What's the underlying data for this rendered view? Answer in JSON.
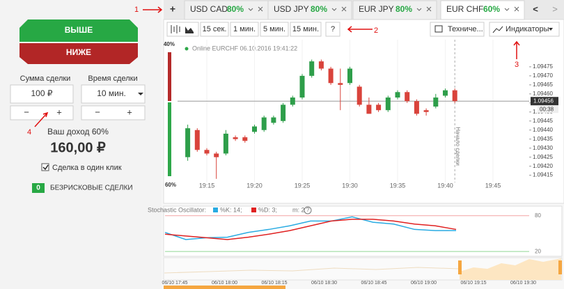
{
  "left_panel": {
    "up_button": "ВЫШЕ",
    "down_button": "НИЖЕ",
    "amount_label": "Сумма сделки",
    "time_label": "Время сделки",
    "amount": "100 ₽",
    "time": "10 мин.",
    "minus": "−",
    "plus": "+",
    "income_label": "Ваш доход 60%",
    "income": "160,00 ₽",
    "one_click": "Сделка в один клик",
    "risk_free_count": "0",
    "risk_free_label": "БЕЗРИСКОВЫЕ СДЕЛКИ"
  },
  "tabs": {
    "new_tab": "+",
    "items": [
      {
        "name": "USD CAD",
        "payout": "80%"
      },
      {
        "name": "USD JPY",
        "payout": "80%"
      },
      {
        "name": "EUR JPY",
        "payout": "80%"
      },
      {
        "name": "EUR CHF",
        "payout": "60%"
      }
    ],
    "prev": "<",
    "next": ">"
  },
  "toolbar": {
    "intervals": [
      "15 сек.",
      "1 мин.",
      "5 мин.",
      "15 мин."
    ],
    "help": "?",
    "technical": "Техниче...",
    "indicators": "Индикаторы"
  },
  "annotations": [
    "1",
    "2",
    "3",
    "4"
  ],
  "sentiment": {
    "values": [
      40,
      60
    ],
    "value_labels": [
      "40%",
      "60%"
    ],
    "colors": [
      "#b52a2a",
      "#2ea84a"
    ]
  },
  "chart_data": [
    {
      "type": "candlestick",
      "title": "Online EURCHF 06.10.2016 19:41:22",
      "x": [
        "19:13",
        "19:14",
        "19:15",
        "19:16",
        "19:17",
        "19:18",
        "19:19",
        "19:20",
        "19:21",
        "19:22",
        "19:23",
        "19:24",
        "19:25",
        "19:26",
        "19:27",
        "19:28",
        "19:29",
        "19:30",
        "19:31",
        "19:32",
        "19:33",
        "19:34",
        "19:35",
        "19:36",
        "19:37",
        "19:38",
        "19:39",
        "19:40",
        "19:41"
      ],
      "open": [
        1.09425,
        1.0944,
        1.09429,
        1.09427,
        1.09427,
        1.09436,
        1.09436,
        1.09439,
        1.0944,
        1.09444,
        1.09445,
        1.09454,
        1.09458,
        1.0947,
        1.09478,
        1.09474,
        1.09466,
        1.09466,
        1.09464,
        1.09454,
        1.09454,
        1.09451,
        1.09458,
        1.09461,
        1.09456,
        1.09451,
        1.09453,
        1.09459,
        1.09462
      ],
      "high": [
        1.09443,
        1.09441,
        1.0943,
        1.09428,
        1.0944,
        1.09437,
        1.09437,
        1.09443,
        1.09448,
        1.09448,
        1.09455,
        1.09459,
        1.09471,
        1.09479,
        1.09479,
        1.09475,
        1.09474,
        1.09475,
        1.09465,
        1.09458,
        1.09455,
        1.09459,
        1.09462,
        1.09462,
        1.09457,
        1.09452,
        1.0946,
        1.09463,
        1.09463
      ],
      "low": [
        1.09423,
        1.09428,
        1.09426,
        1.09413,
        1.09426,
        1.09434,
        1.09433,
        1.09438,
        1.09439,
        1.09443,
        1.09444,
        1.09453,
        1.09457,
        1.09469,
        1.09473,
        1.09465,
        1.09451,
        1.09465,
        1.09453,
        1.09449,
        1.0945,
        1.0945,
        1.09457,
        1.09455,
        1.09448,
        1.09448,
        1.09452,
        1.09458,
        1.09455
      ],
      "close": [
        1.09441,
        1.09429,
        1.09427,
        1.09425,
        1.09438,
        1.09435,
        1.09434,
        1.09442,
        1.09447,
        1.09447,
        1.09454,
        1.09458,
        1.0947,
        1.09478,
        1.09474,
        1.09466,
        1.09465,
        1.09474,
        1.09454,
        1.09449,
        1.09451,
        1.09458,
        1.09461,
        1.09456,
        1.09449,
        1.0945,
        1.09458,
        1.09462,
        1.09456
      ],
      "up_color": "#2e9e4a",
      "down_color": "#d9433b",
      "ylim": [
        1.09411,
        1.0949
      ],
      "yticks": [
        1.09415,
        {
          "value": 1.0942,
          "label": "1.09420"
        },
        1.09425,
        {
          "value": 1.0943,
          "label": "1.09430"
        },
        1.09435,
        {
          "value": 1.0944,
          "label": "1.09440"
        },
        1.09445,
        {
          "value": 1.0945,
          "label": "1.09450"
        },
        1.09455,
        {
          "value": 1.0946,
          "label": "1.09460"
        },
        1.09465,
        {
          "value": 1.0947,
          "label": "1.09470"
        },
        1.09475
      ],
      "xticks": [
        "19:15",
        "19:20",
        "19:25",
        "19:30",
        "19:35",
        "19:40",
        "19:45"
      ],
      "current_price": 1.09456,
      "timer": "00:38",
      "marker_x": "19:41",
      "marker_label": "Начало сделки"
    },
    {
      "type": "line",
      "title": "Stochastic Oscillator:",
      "params": "m: 2",
      "help": "?",
      "series": [
        {
          "name": "%K: 14;",
          "color": "#29abe2",
          "values": [
            52,
            40,
            43,
            44,
            52,
            57,
            63,
            71,
            71,
            78,
            69,
            66,
            57,
            55,
            55
          ]
        },
        {
          "name": "%D: 3;",
          "color": "#e02020",
          "values": [
            49,
            46,
            43,
            40,
            44,
            49,
            55,
            63,
            71,
            74,
            74,
            71,
            66,
            63,
            57
          ]
        }
      ],
      "ylim": [
        12,
        89
      ],
      "yticks": [
        20,
        80
      ],
      "navigator_ticks": [
        "06/10 17:45",
        "06/10 18:00",
        "06/10 18:15",
        "06/10 18:30",
        "06/10 18:45",
        "06/10 19:00",
        "06/10 19:15",
        "06/10 19:30"
      ]
    }
  ]
}
